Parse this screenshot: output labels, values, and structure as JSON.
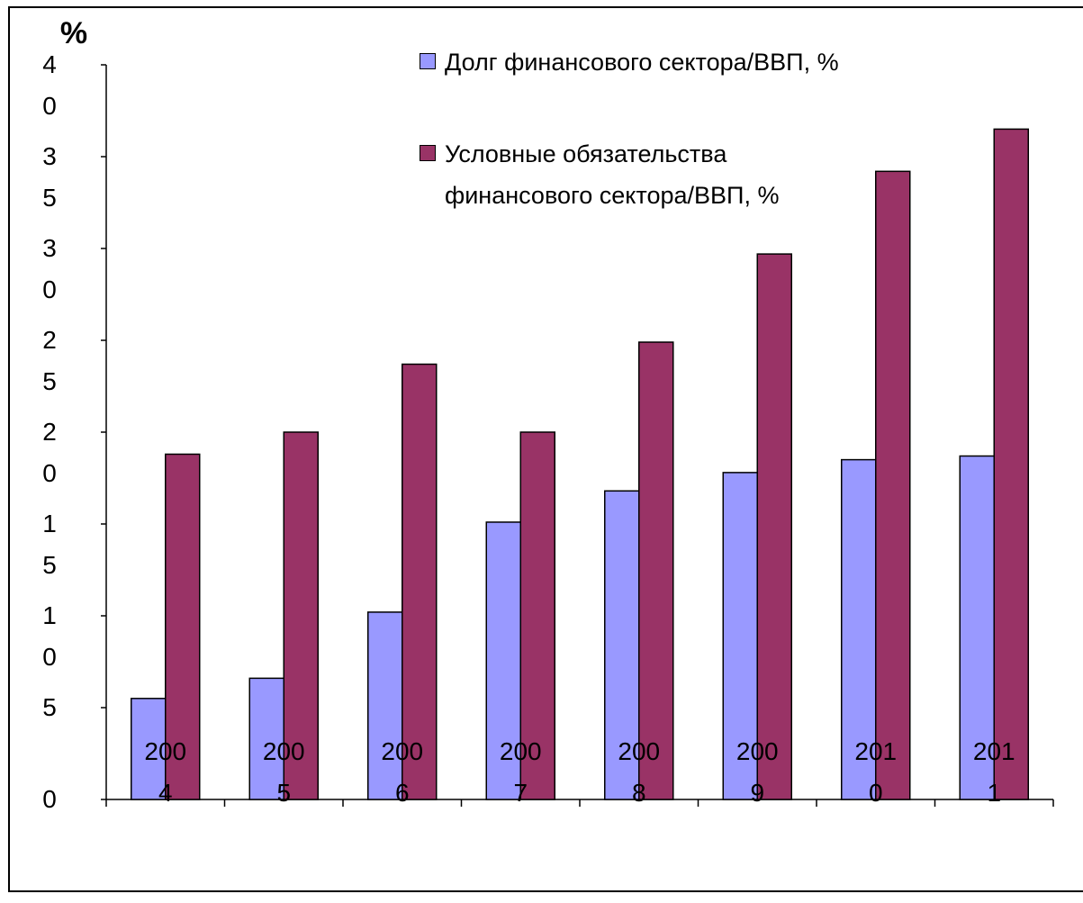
{
  "chart_data": {
    "type": "bar",
    "y_label": "%",
    "categories": [
      "2004",
      "2005",
      "2006",
      "2007",
      "2008",
      "2009",
      "2010",
      "2011"
    ],
    "series": [
      {
        "name": "Долг финансового сектора/ВВП, %",
        "color": "#9999ff",
        "values": [
          5.5,
          6.6,
          10.2,
          15.1,
          16.8,
          17.8,
          18.5,
          18.7
        ]
      },
      {
        "name": "Условные обязательства финансового сектора/ВВП, %",
        "color": "#993366",
        "values": [
          18.8,
          20.0,
          23.7,
          20.0,
          24.9,
          29.7,
          34.2,
          36.5
        ]
      }
    ],
    "ylim": [
      0,
      40
    ],
    "yticks": [
      0,
      5,
      10,
      15,
      20,
      25,
      30,
      35,
      40
    ],
    "grid": false,
    "legend": "top-right"
  }
}
